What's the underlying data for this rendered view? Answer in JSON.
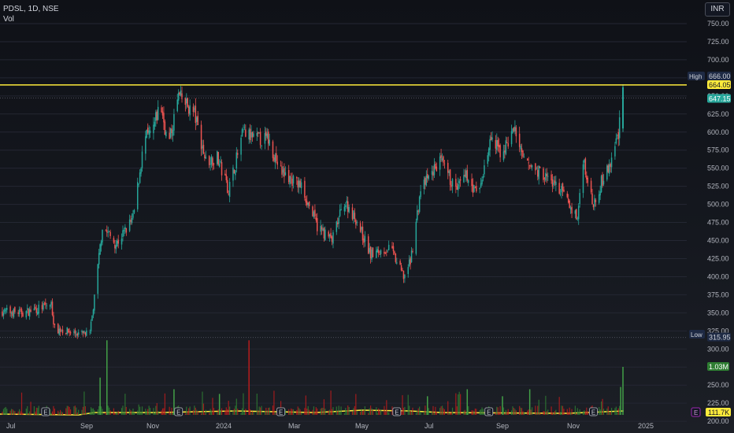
{
  "header": {
    "symbol_line": "PDSL, 1D, NSE",
    "indicator": "Vol"
  },
  "currency_button": "INR",
  "chart_data": {
    "type": "candlestick",
    "y_ticks": [
      750,
      725,
      700,
      675,
      650,
      625,
      600,
      575,
      550,
      525,
      500,
      475,
      450,
      425,
      400,
      375,
      350,
      325,
      300,
      275,
      250,
      225,
      200
    ],
    "x_labels": [
      "Jul",
      "Sep",
      "Nov",
      "2024",
      "Mar",
      "May",
      "Jul",
      "Sep",
      "Nov",
      "2025"
    ],
    "ylim": [
      190,
      765
    ],
    "price_path": [
      [
        "2023-06-12",
        352
      ],
      [
        "2023-07-01",
        350
      ],
      [
        "2023-07-25",
        362
      ],
      [
        "2023-07-28",
        328
      ],
      [
        "2023-08-15",
        322
      ],
      [
        "2023-08-28",
        320
      ],
      [
        "2023-09-01",
        370
      ],
      [
        "2023-09-08",
        470
      ],
      [
        "2023-09-20",
        445
      ],
      [
        "2023-10-05",
        480
      ],
      [
        "2023-10-15",
        590
      ],
      [
        "2023-10-22",
        600
      ],
      [
        "2023-10-29",
        640
      ],
      [
        "2023-11-05",
        580
      ],
      [
        "2023-11-14",
        650
      ],
      [
        "2023-11-28",
        625
      ],
      [
        "2023-12-08",
        560
      ],
      [
        "2023-12-18",
        565
      ],
      [
        "2023-12-28",
        520
      ],
      [
        "2024-01-10",
        600
      ],
      [
        "2024-01-20",
        590
      ],
      [
        "2024-02-01",
        590
      ],
      [
        "2024-02-12",
        545
      ],
      [
        "2024-03-01",
        525
      ],
      [
        "2024-03-15",
        470
      ],
      [
        "2024-03-28",
        450
      ],
      [
        "2024-04-08",
        505
      ],
      [
        "2024-04-18",
        480
      ],
      [
        "2024-05-01",
        430
      ],
      [
        "2024-05-18",
        440
      ],
      [
        "2024-05-30",
        400
      ],
      [
        "2024-06-05",
        420
      ],
      [
        "2024-06-14",
        520
      ],
      [
        "2024-07-01",
        560
      ],
      [
        "2024-07-15",
        520
      ],
      [
        "2024-07-25",
        540
      ],
      [
        "2024-08-03",
        510
      ],
      [
        "2024-08-15",
        590
      ],
      [
        "2024-08-24",
        570
      ],
      [
        "2024-09-05",
        605
      ],
      [
        "2024-09-12",
        560
      ],
      [
        "2024-10-01",
        540
      ],
      [
        "2024-10-15",
        520
      ],
      [
        "2024-10-30",
        480
      ],
      [
        "2024-11-04",
        565
      ],
      [
        "2024-11-12",
        500
      ],
      [
        "2024-11-20",
        530
      ],
      [
        "2024-11-28",
        555
      ],
      [
        "2024-12-05",
        600
      ],
      [
        "2024-12-08",
        650
      ]
    ],
    "volume_spikes": [
      [
        "2023-09-06",
        "0.8"
      ],
      [
        "2023-09-12",
        "1.6"
      ],
      [
        "2023-11-10",
        "0.55"
      ],
      [
        "2023-12-20",
        "0.45"
      ],
      [
        "2024-01-15",
        "1.6"
      ],
      [
        "2024-06-20",
        "0.4"
      ],
      [
        "2024-07-25",
        "0.55"
      ],
      [
        "2024-08-25",
        "0.4"
      ],
      [
        "2024-09-18",
        "0.55"
      ],
      [
        "2024-12-07",
        "0.6"
      ],
      [
        "2024-12-09",
        "1.03"
      ]
    ],
    "date_range": [
      "2023-06-12",
      "2024-12-09"
    ],
    "high_line": {
      "label": "High",
      "value": "666.00",
      "color": "#ffeb3b"
    },
    "resistance_value": "664.05",
    "last_price": "647.15",
    "low_line": {
      "label": "Low",
      "value": "315.95"
    },
    "volume_tag": "1.03M",
    "ma_tag": {
      "icon": "E",
      "value": "111.7K"
    },
    "earnings_markers": [
      "2023-07-20",
      "2023-11-14",
      "2024-02-12",
      "2024-05-24",
      "2024-08-13",
      "2024-11-13"
    ],
    "colors": {
      "up": "#26a69a",
      "down": "#ef5350",
      "vol_up": "#2e7d32",
      "vol_down": "#b71c1c",
      "ma": "#ffeb3b",
      "grid": "#242733"
    }
  }
}
